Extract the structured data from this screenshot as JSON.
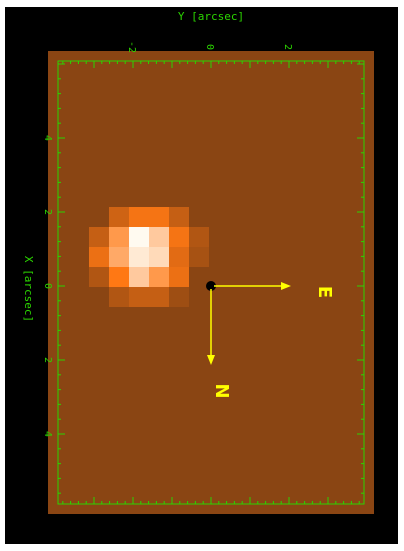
{
  "figure": {
    "x_axis_label": "Y [arcsec]",
    "y_axis_label": "X [arcsec]",
    "x_tick_labels": [
      "-2",
      "0",
      "2"
    ],
    "y_tick_labels": [
      "4",
      "2",
      "0",
      "2",
      "4"
    ],
    "east_label": "E",
    "north_label": "N"
  },
  "colors": {
    "frame_background": "#000000",
    "image_background": "#8a4513",
    "axis_green": "#2bd400",
    "compass_yellow": "#ffff00",
    "center_marker": "#000000"
  },
  "image": {
    "description_note": "",
    "source_grid_values": [
      [
        0,
        0,
        0,
        0,
        0,
        0,
        0
      ],
      [
        0,
        0.35,
        0.55,
        0.55,
        0.3,
        0,
        0
      ],
      [
        0.3,
        0.7,
        1.0,
        0.85,
        0.55,
        0.2,
        0
      ],
      [
        0.5,
        0.75,
        0.95,
        0.9,
        0.45,
        0.15,
        0
      ],
      [
        0.2,
        0.6,
        0.85,
        0.7,
        0.5,
        0,
        0
      ],
      [
        0,
        0.2,
        0.3,
        0.3,
        0.1,
        0,
        0
      ]
    ]
  }
}
